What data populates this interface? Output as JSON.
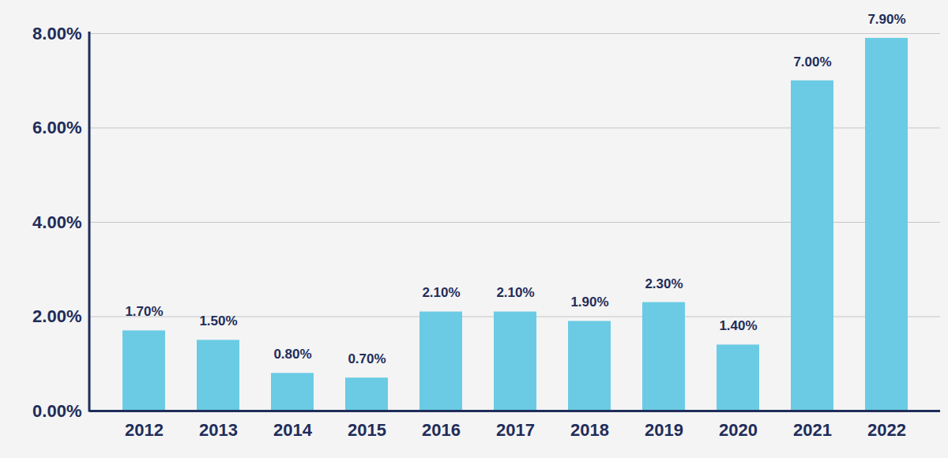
{
  "chart_data": {
    "type": "bar",
    "categories": [
      "2012",
      "2013",
      "2014",
      "2015",
      "2016",
      "2017",
      "2018",
      "2019",
      "2020",
      "2021",
      "2022"
    ],
    "values": [
      1.7,
      1.5,
      0.8,
      0.7,
      2.1,
      2.1,
      1.9,
      2.3,
      1.4,
      7.0,
      7.9
    ],
    "value_labels": [
      "1.70%",
      "1.50%",
      "0.80%",
      "0.70%",
      "2.10%",
      "2.10%",
      "1.90%",
      "2.30%",
      "1.40%",
      "7.00%",
      "7.90%"
    ],
    "data_labels": true,
    "color": "#6bcbe4",
    "ylim": [
      0,
      8
    ],
    "yticks": [
      {
        "value": 0,
        "label": "0.00%"
      },
      {
        "value": 2,
        "label": "2.00%"
      },
      {
        "value": 4,
        "label": "4.00%"
      },
      {
        "value": 6,
        "label": "6.00%"
      },
      {
        "value": 8,
        "label": "8.00%"
      }
    ],
    "grid": true
  }
}
